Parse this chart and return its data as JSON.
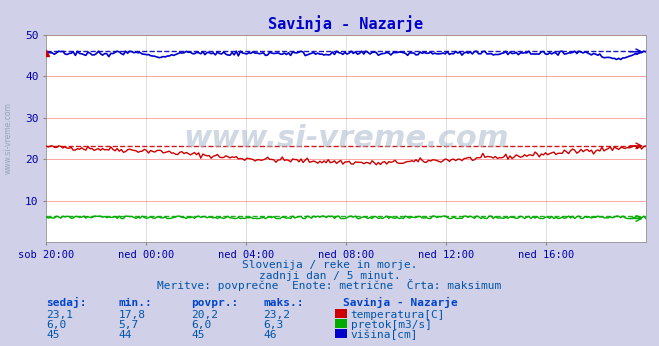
{
  "title": "Savinja - Nazarje",
  "title_color": "#0000cc",
  "bg_color": "#d0d0e8",
  "plot_bg_color": "#ffffff",
  "grid_color_h": "#ff8080",
  "grid_color_v": "#d0d0d0",
  "xlabel_color": "#0000aa",
  "text_color": "#0055aa",
  "watermark": "www.si-vreme.com",
  "subtitle1": "Slovenija / reke in morje.",
  "subtitle2": "zadnji dan / 5 minut.",
  "subtitle3": "Meritve: povprečne  Enote: metrične  Črta: maksimum",
  "xlabels": [
    "sob 20:00",
    "ned 00:00",
    "ned 04:00",
    "ned 08:00",
    "ned 12:00",
    "ned 16:00"
  ],
  "ylim": [
    0,
    50
  ],
  "yticks": [
    0,
    10,
    20,
    30,
    40,
    50
  ],
  "n_points": 288,
  "temp_color": "#cc0000",
  "pretok_color": "#00aa00",
  "visina_color": "#0000cc",
  "temp_dashed_color": "#cc0000",
  "visina_dashed_color": "#0000bb",
  "pretok_dashed_color": "#00aa00",
  "legend_labels": [
    "temperatura[C]",
    "pretok[m3/s]",
    "višina[cm]"
  ],
  "legend_colors": [
    "#cc0000",
    "#00aa00",
    "#0000cc"
  ],
  "table_headers": [
    "sedaj:",
    "min.:",
    "povpr.:",
    "maks.:"
  ],
  "table_rows": [
    [
      "23,1",
      "17,8",
      "20,2",
      "23,2"
    ],
    [
      "6,0",
      "5,7",
      "6,0",
      "6,3"
    ],
    [
      "45",
      "44",
      "45",
      "46"
    ]
  ],
  "station_label": "Savinja - Nazarje",
  "temp_max": 23.2,
  "pretok_max": 6.3,
  "visina_max": 46.0
}
